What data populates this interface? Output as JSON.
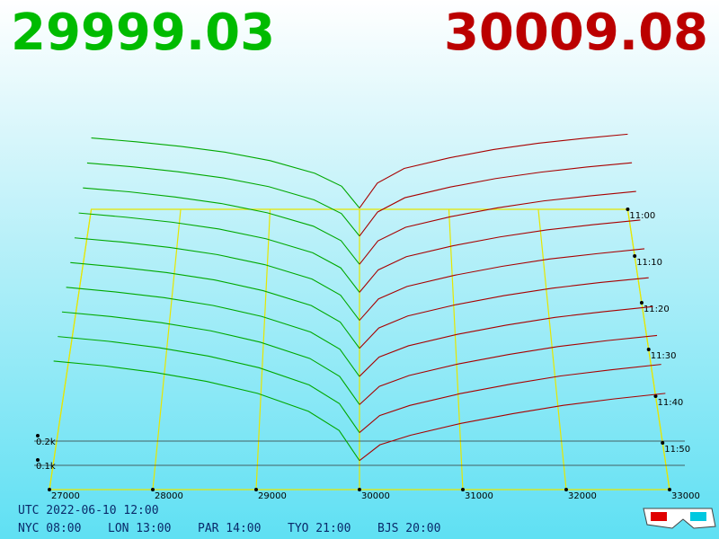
{
  "header": {
    "bid": 29999.03,
    "ask": 30009.08
  },
  "chart_data": {
    "type": "depth3d",
    "bid_color": "#00a800",
    "ask_color": "#a80000",
    "floor_color": "#e6e600",
    "xlim": [
      27000,
      33000
    ],
    "xticks": [
      27000,
      28000,
      29000,
      30000,
      31000,
      32000,
      33000
    ],
    "ylim": [
      0,
      1000
    ],
    "yticks": [
      {
        "value": 100,
        "label": "0.1k"
      },
      {
        "value": 200,
        "label": "0.2k"
      }
    ],
    "zlim": [
      660,
      720
    ],
    "zticks": [
      {
        "value": 660,
        "label": "11:00"
      },
      {
        "value": 670,
        "label": "11:10"
      },
      {
        "value": 680,
        "label": "11:20"
      },
      {
        "value": 690,
        "label": "11:30"
      },
      {
        "value": 700,
        "label": "11:40"
      },
      {
        "value": 710,
        "label": "11:50"
      }
    ],
    "bid_prices": [
      27000,
      27500,
      28000,
      28500,
      29000,
      29500,
      29800,
      30000
    ],
    "ask_prices": [
      30000,
      30200,
      30500,
      31000,
      31500,
      32000,
      32500,
      33000
    ],
    "series": [
      {
        "t": 660,
        "bids": [
          340,
          322,
          300,
          272,
          232,
          172,
          110,
          6
        ],
        "asks": [
          6,
          125,
          195,
          245,
          285,
          315,
          338,
          358
        ]
      },
      {
        "t": 666,
        "bids": [
          349,
          331,
          308,
          279,
          238,
          176,
          112,
          6
        ],
        "asks": [
          6,
          119,
          186,
          236,
          276,
          306,
          330,
          350
        ]
      },
      {
        "t": 672,
        "bids": [
          358,
          340,
          316,
          286,
          243,
          181,
          114,
          5
        ],
        "asks": [
          5,
          113,
          176,
          226,
          266,
          298,
          321,
          342
        ]
      },
      {
        "t": 678,
        "bids": [
          366,
          347,
          324,
          293,
          249,
          185,
          116,
          5
        ],
        "asks": [
          5,
          107,
          167,
          217,
          257,
          289,
          313,
          334
        ]
      },
      {
        "t": 684,
        "bids": [
          375,
          356,
          332,
          300,
          255,
          190,
          118,
          5
        ],
        "asks": [
          5,
          101,
          157,
          207,
          247,
          280,
          304,
          326
        ]
      },
      {
        "t": 690,
        "bids": [
          384,
          364,
          340,
          307,
          260,
          194,
          121,
          5
        ],
        "asks": [
          5,
          95,
          148,
          198,
          238,
          271,
          296,
          317
        ]
      },
      {
        "t": 696,
        "bids": [
          393,
          373,
          348,
          314,
          266,
          198,
          123,
          4
        ],
        "asks": [
          5,
          89,
          138,
          188,
          228,
          262,
          287,
          309
        ]
      },
      {
        "t": 702,
        "bids": [
          402,
          382,
          356,
          321,
          272,
          202,
          125,
          4
        ],
        "asks": [
          4,
          82,
          129,
          179,
          219,
          253,
          279,
          301
        ]
      },
      {
        "t": 708,
        "bids": [
          411,
          391,
          364,
          328,
          279,
          206,
          127,
          4
        ],
        "asks": [
          4,
          76,
          119,
          169,
          209,
          244,
          270,
          293
        ]
      },
      {
        "t": 714,
        "bids": [
          420,
          400,
          372,
          335,
          285,
          210,
          130,
          4
        ],
        "asks": [
          4,
          70,
          110,
          160,
          200,
          235,
          262,
          285
        ]
      }
    ]
  },
  "footer": {
    "utc": "UTC 2022-06-10 12:00",
    "clocks": [
      "NYC 08:00",
      "LON 13:00",
      "PAR 14:00",
      "TYO 21:00",
      "BJS 20:00"
    ]
  }
}
